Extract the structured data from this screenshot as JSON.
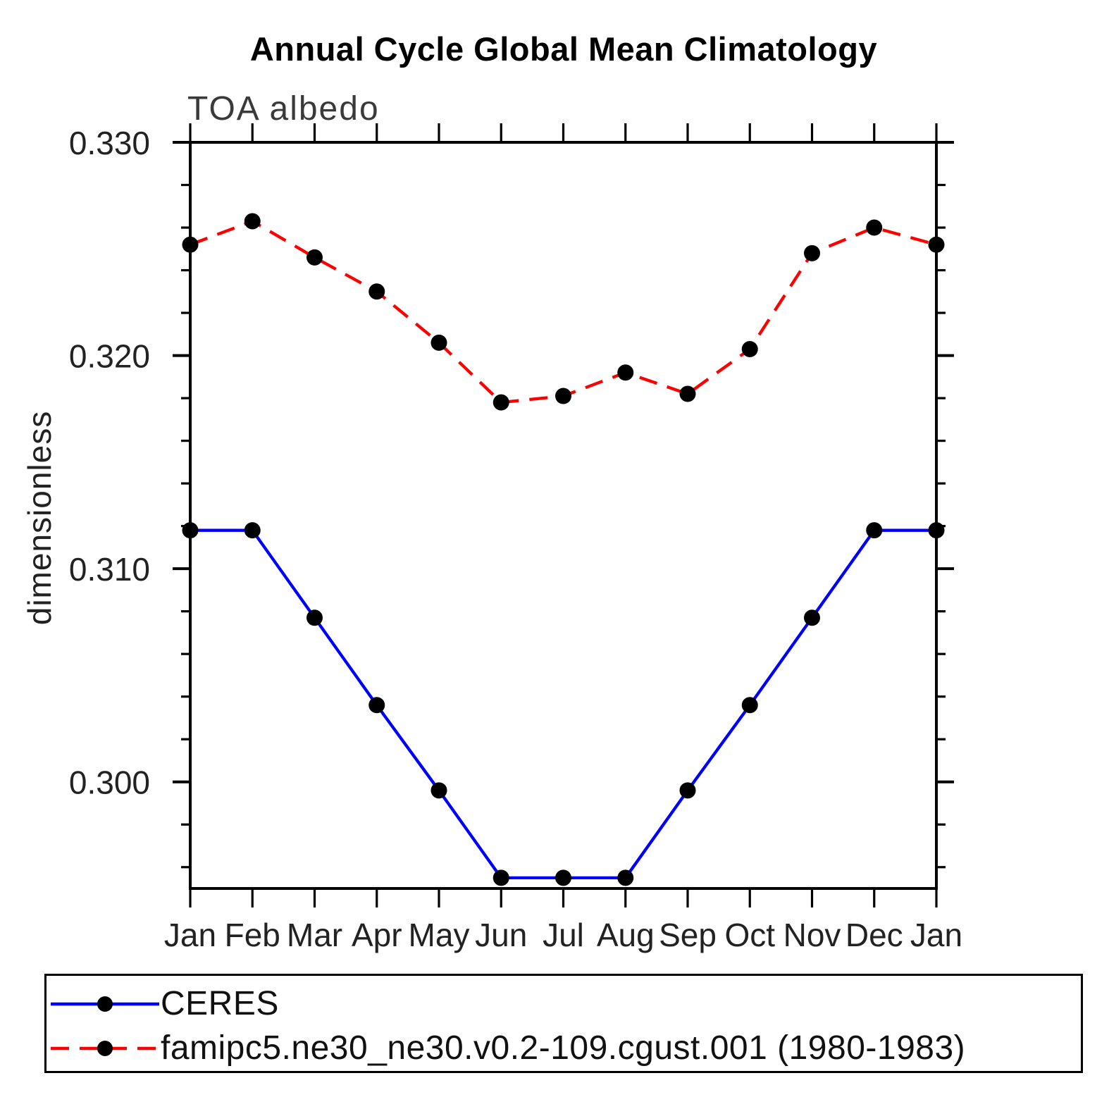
{
  "title": "Annual Cycle Global Mean Climatology",
  "subtitle": "TOA albedo",
  "ylabel": "dimensionless",
  "legend": {
    "entries": [
      {
        "label": "CERES",
        "color": "#0000ff",
        "style": "solid",
        "marker": "circle"
      },
      {
        "label": "famipc5.ne30_ne30.v0.2-109.cgust.001 (1980-1983)",
        "color": "#ff0000",
        "style": "dashed",
        "marker": "circle"
      }
    ]
  },
  "colors": {
    "axis": "#000000",
    "marker": "#000000",
    "ceres_blue": "#0000ff",
    "model_red": "#ff0000"
  },
  "chart_data": {
    "type": "line",
    "title": "Annual Cycle Global Mean Climatology",
    "subtitle": "TOA albedo",
    "xlabel": "",
    "ylabel": "dimensionless",
    "categories": [
      "Jan",
      "Feb",
      "Mar",
      "Apr",
      "May",
      "Jun",
      "Jul",
      "Aug",
      "Sep",
      "Oct",
      "Nov",
      "Dec",
      "Jan"
    ],
    "series": [
      {
        "name": "CERES",
        "color": "#0000ff",
        "dashed": false,
        "marker": "circle",
        "values": [
          0.3118,
          0.3118,
          0.3077,
          0.3036,
          0.2996,
          0.2955,
          0.2955,
          0.2955,
          0.2996,
          0.3036,
          0.3077,
          0.3118,
          0.3118
        ]
      },
      {
        "name": "famipc5.ne30_ne30.v0.2-109.cgust.001 (1980-1983)",
        "color": "#ff0000",
        "dashed": true,
        "marker": "circle",
        "values": [
          0.3252,
          0.3263,
          0.3246,
          0.323,
          0.3206,
          0.3178,
          0.3181,
          0.3192,
          0.3182,
          0.3203,
          0.3248,
          0.326,
          0.3252
        ]
      }
    ],
    "ylim": [
      0.295,
      0.33
    ],
    "yticks_major": [
      0.3,
      0.31,
      0.32,
      0.33
    ],
    "ytick_labels": [
      "0.300",
      "0.310",
      "0.320",
      "0.330"
    ],
    "ytick_minor_step": 0.002,
    "grid": false,
    "legend_position": "bottom"
  }
}
